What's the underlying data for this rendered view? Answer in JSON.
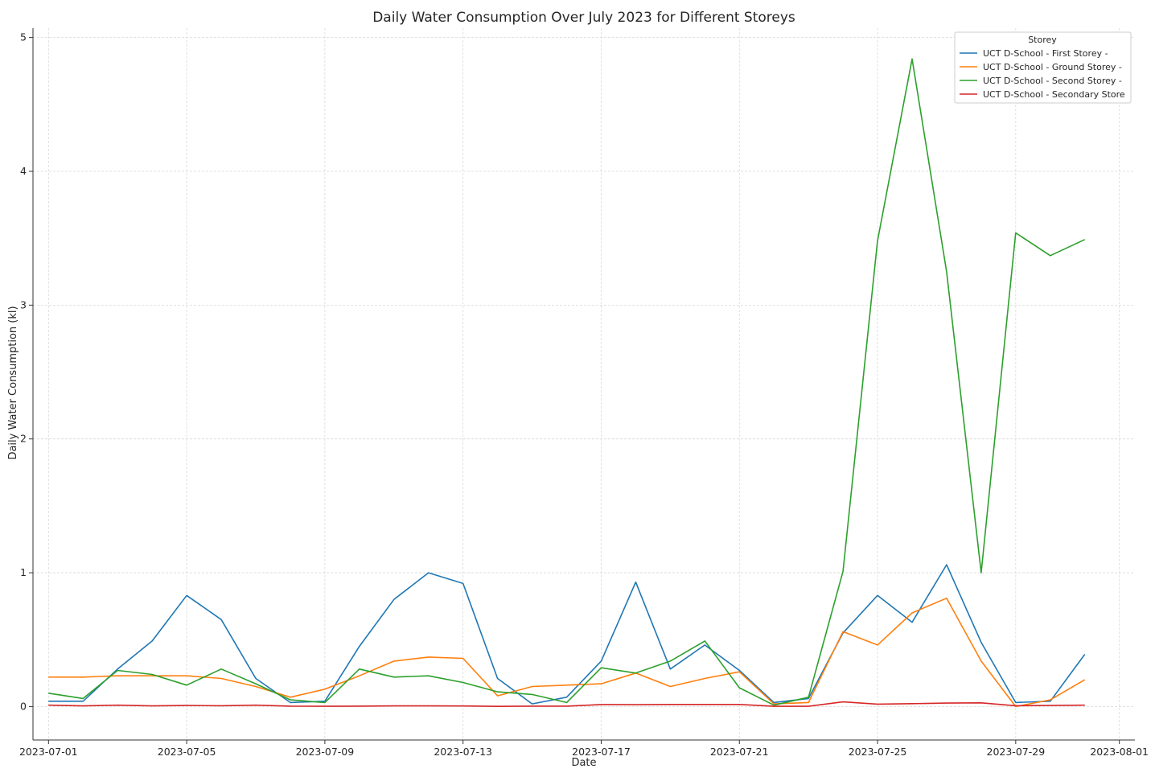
{
  "chart_data": {
    "type": "line",
    "title": "Daily Water Consumption Over July 2023 for Different Storeys",
    "xlabel": "Date",
    "ylabel": "Daily Water Consumption (kl)",
    "x": [
      "2023-07-01",
      "2023-07-02",
      "2023-07-03",
      "2023-07-04",
      "2023-07-05",
      "2023-07-06",
      "2023-07-07",
      "2023-07-08",
      "2023-07-09",
      "2023-07-10",
      "2023-07-11",
      "2023-07-12",
      "2023-07-13",
      "2023-07-14",
      "2023-07-15",
      "2023-07-16",
      "2023-07-17",
      "2023-07-18",
      "2023-07-19",
      "2023-07-20",
      "2023-07-21",
      "2023-07-22",
      "2023-07-23",
      "2023-07-24",
      "2023-07-25",
      "2023-07-26",
      "2023-07-27",
      "2023-07-28",
      "2023-07-29",
      "2023-07-30",
      "2023-07-31"
    ],
    "xlim": [
      "2023-06-30",
      "2023-08-01"
    ],
    "x_ticks": [
      "2023-07-01",
      "2023-07-05",
      "2023-07-09",
      "2023-07-13",
      "2023-07-17",
      "2023-07-21",
      "2023-07-25",
      "2023-07-29",
      "2023-08-01"
    ],
    "ylim": [
      -0.25,
      5.07
    ],
    "y_ticks": [
      0,
      1,
      2,
      3,
      4,
      5
    ],
    "grid": true,
    "legend_title": "Storey",
    "legend_position": "top-right",
    "series": [
      {
        "name": "UCT D-School - First Storey -",
        "color": "#1f77b4",
        "values": [
          0.04,
          0.04,
          0.28,
          0.49,
          0.83,
          0.65,
          0.21,
          0.03,
          0.04,
          0.45,
          0.8,
          1.0,
          0.92,
          0.21,
          0.02,
          0.07,
          0.34,
          0.93,
          0.28,
          0.46,
          0.27,
          0.03,
          0.06,
          0.55,
          0.83,
          0.63,
          1.06,
          0.48,
          0.03,
          0.04,
          0.39
        ]
      },
      {
        "name": "UCT D-School - Ground Storey -",
        "color": "#ff7f0e",
        "values": [
          0.22,
          0.22,
          0.23,
          0.23,
          0.23,
          0.21,
          0.15,
          0.07,
          0.13,
          0.23,
          0.34,
          0.37,
          0.36,
          0.08,
          0.15,
          0.16,
          0.17,
          0.25,
          0.15,
          0.21,
          0.26,
          0.02,
          0.03,
          0.56,
          0.46,
          0.7,
          0.81,
          0.34,
          0.0,
          0.05,
          0.2
        ]
      },
      {
        "name": "UCT D-School - Second Storey -",
        "color": "#2ca02c",
        "values": [
          0.1,
          0.06,
          0.27,
          0.24,
          0.16,
          0.28,
          0.17,
          0.05,
          0.03,
          0.28,
          0.22,
          0.23,
          0.18,
          0.11,
          0.09,
          0.03,
          0.29,
          0.25,
          0.34,
          0.49,
          0.14,
          0.01,
          0.07,
          1.01,
          3.48,
          4.84,
          3.25,
          1.0,
          3.54,
          3.37,
          3.49
        ]
      },
      {
        "name": "UCT D-School - Secondary Store",
        "color": "#d62728",
        "values": [
          0.01,
          0.005,
          0.01,
          0.005,
          0.008,
          0.006,
          0.01,
          0.003,
          0.002,
          0.003,
          0.005,
          0.005,
          0.004,
          0.001,
          0.003,
          0.003,
          0.015,
          0.014,
          0.016,
          0.016,
          0.016,
          0.002,
          0.002,
          0.035,
          0.018,
          0.022,
          0.026,
          0.028,
          0.006,
          0.008,
          0.01
        ]
      }
    ]
  }
}
